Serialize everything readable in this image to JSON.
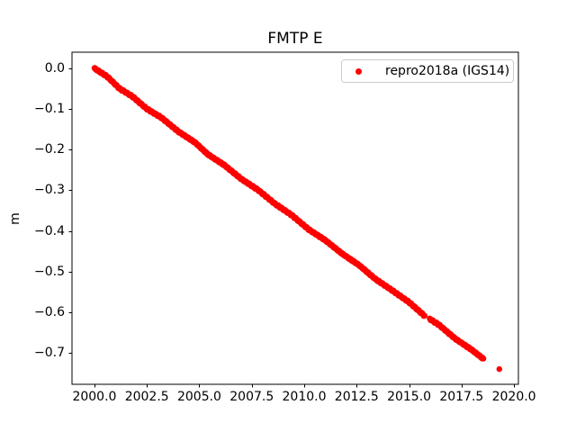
{
  "figure": {
    "background": "#ffffff",
    "frame_color": "#000000",
    "legend_border_color": "#cccccc"
  },
  "chart_data": {
    "type": "scatter",
    "title": "FMTP E",
    "xlabel": "",
    "ylabel": "m",
    "xlim": [
      1998.93,
      2020.21
    ],
    "ylim": [
      -0.7785,
      0.0408
    ],
    "grid": false,
    "x_ticks": [
      2000.0,
      2002.5,
      2005.0,
      2007.5,
      2010.0,
      2012.5,
      2015.0,
      2017.5,
      2020.0
    ],
    "x_tick_labels": [
      "2000.0",
      "2002.5",
      "2005.0",
      "2007.5",
      "2010.0",
      "2012.5",
      "2015.0",
      "2017.5",
      "2020.0"
    ],
    "y_ticks": [
      0.0,
      -0.1,
      -0.2,
      -0.3,
      -0.4,
      -0.5,
      -0.6,
      -0.7
    ],
    "y_tick_labels": [
      "0.0",
      "−0.1",
      "−0.2",
      "−0.3",
      "−0.4",
      "−0.5",
      "−0.6",
      "−0.7"
    ],
    "legend": {
      "label": "repro2018a (IGS14)",
      "position": "upper right",
      "marker_color": "#ff0000"
    },
    "series": [
      {
        "name": "repro2018a (IGS14)",
        "color": "#ff0000",
        "marker": "point",
        "marker_radius_px": 3.2,
        "trend_slope_m_per_year": -0.0386,
        "sample_step_years": 0.02,
        "gaps": [
          [
            2015.74,
            2015.97
          ]
        ],
        "anchors": [
          [
            2000.0,
            0.001
          ],
          [
            2000.6,
            -0.019
          ],
          [
            2001.2,
            -0.049
          ],
          [
            2001.8,
            -0.068
          ],
          [
            2002.5,
            -0.099
          ],
          [
            2003.2,
            -0.121
          ],
          [
            2004.0,
            -0.155
          ],
          [
            2004.8,
            -0.182
          ],
          [
            2005.4,
            -0.211
          ],
          [
            2006.2,
            -0.238
          ],
          [
            2007.0,
            -0.272
          ],
          [
            2007.8,
            -0.299
          ],
          [
            2008.6,
            -0.333
          ],
          [
            2009.4,
            -0.361
          ],
          [
            2010.2,
            -0.396
          ],
          [
            2011.0,
            -0.423
          ],
          [
            2011.8,
            -0.456
          ],
          [
            2012.6,
            -0.484
          ],
          [
            2013.4,
            -0.519
          ],
          [
            2014.2,
            -0.547
          ],
          [
            2015.0,
            -0.576
          ],
          [
            2015.7,
            -0.608
          ],
          [
            2016.4,
            -0.631
          ],
          [
            2017.2,
            -0.666
          ],
          [
            2018.0,
            -0.694
          ],
          [
            2018.55,
            -0.716
          ]
        ],
        "isolated_points": [
          [
            2019.3,
            -0.741
          ]
        ]
      }
    ]
  }
}
